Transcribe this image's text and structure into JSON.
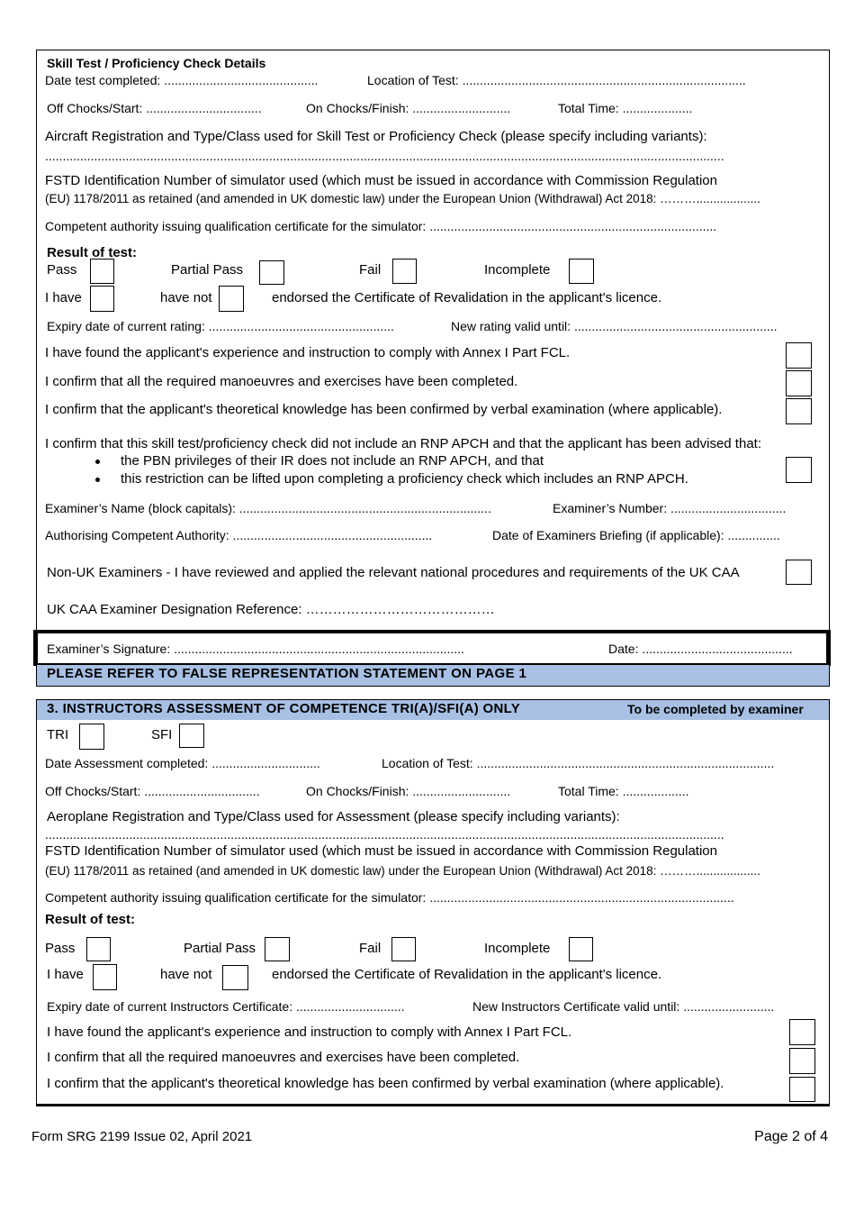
{
  "section2": {
    "heading": "Skill Test / Proficiency Check Details",
    "date_completed": "Date test completed: ............................................",
    "location": "Location of Test: .................................................................................",
    "off_chocks": "Off Chocks/Start: .................................",
    "on_chocks": "On Chocks/Finish: ............................",
    "total_time": "Total Time:  ....................",
    "aircraft": "Aircraft Registration and Type/Class used for Skill Test or Proficiency Check (please specify including variants):",
    "aircraft_line": "..................................................................................................................................................................................................",
    "fstd_1": "FSTD Identification Number of simulator used (which must be issued in accordance with Commission Regulation",
    "fstd_2": "(EU) 1178/2011 as retained (and  amended in UK domestic law) under the European Union (Withdrawal) Act 2018: ………...................",
    "competent": "Competent authority issuing qualification certificate for the simulator:  ..................................................................................",
    "result_heading": "Result of test:",
    "results": [
      "Pass",
      "Partial Pass",
      "Fail",
      "Incomplete"
    ],
    "i_have": "I have",
    "have_not": "have not",
    "endorsed": "endorsed the Certificate of Revalidation in the applicant's licence.",
    "expiry": "Expiry date of current rating:  .....................................................",
    "new_rating": "New rating valid until:  ..........................................................",
    "confirmations": [
      "I have found the applicant's experience and instruction to comply with Annex I Part FCL.",
      "I confirm that all the required manoeuvres and exercises have been completed.",
      "I confirm that the applicant's theoretical knowledge has been confirmed by verbal examination (where applicable)."
    ],
    "rnp": "I confirm that this skill test/proficiency check did not include an RNP APCH and that the applicant has been advised that:",
    "rnp_bullets": [
      "the PBN privileges of their IR does not include an RNP APCH, and that",
      "this restriction can be lifted upon completing a proficiency check which includes an RNP APCH."
    ],
    "examiner_name": "Examiner’s Name (block capitals): ........................................................................",
    "examiner_number": "Examiner’s Number:   .................................",
    "authorising": "Authorising Competent Authority: .........................................................",
    "briefing": "Date of Examiners Briefing (if applicable):  ...............",
    "non_uk": "Non-UK Examiners - I have reviewed and applied the relevant national procedures and requirements of the UK CAA",
    "designation": "UK CAA Examiner Designation Reference: ……………………………………",
    "signature": "Examiner’s Signature:  ...................................................................................",
    "date": "Date: ..........................................."
  },
  "false_statement": "PLEASE REFER TO FALSE REPRESENTATION STATEMENT ON PAGE 1",
  "section3": {
    "heading": "3.  INSTRUCTORS ASSESSMENT OF COMPETENCE TRI(A)/SFI(A) ONLY",
    "note": "To be completed by examiner",
    "tri": "TRI",
    "sfi": "SFI",
    "date_completed": "Date Assessment completed: ...............................",
    "location": "Location of Test:  .....................................................................................",
    "off_chocks": "Off Chocks/Start: .................................",
    "on_chocks": "On Chocks/Finish: ............................",
    "total_time": "Total Time:  ...................",
    "aeroplane": "Aeroplane Registration and Type/Class used for Assessment (please specify including variants):",
    "aeroplane_line": "..................................................................................................................................................................................................",
    "fstd_1": "FSTD Identification Number of simulator used (which must be issued in accordance with Commission Regulation",
    "fstd_2": "(EU) 1178/2011 as retained (and  amended in UK domestic law) under the European Union (Withdrawal) Act 2018:  ………...................",
    "competent": "Competent authority issuing qualification certificate for the simulator:   .......................................................................................",
    "result_heading": "Result of test:",
    "results": [
      "Pass",
      "Partial Pass",
      "Fail",
      "Incomplete"
    ],
    "i_have": "I have",
    "have_not": "have not",
    "endorsed": "endorsed the Certificate of Revalidation in the applicant's licence.",
    "expiry": "Expiry date of current Instructors Certificate:   ...............................",
    "new_certificate": "New Instructors Certificate valid until:  ..........................",
    "confirmations": [
      "I have found the applicant's experience and instruction to comply with Annex I Part FCL.",
      "I confirm that all the required manoeuvres and exercises have been completed.",
      "I confirm that the applicant's theoretical knowledge has been confirmed by verbal examination (where applicable)."
    ]
  },
  "footer": {
    "form": "Form SRG 2199 Issue 02, April 2021",
    "page": "Page 2 of 4"
  }
}
